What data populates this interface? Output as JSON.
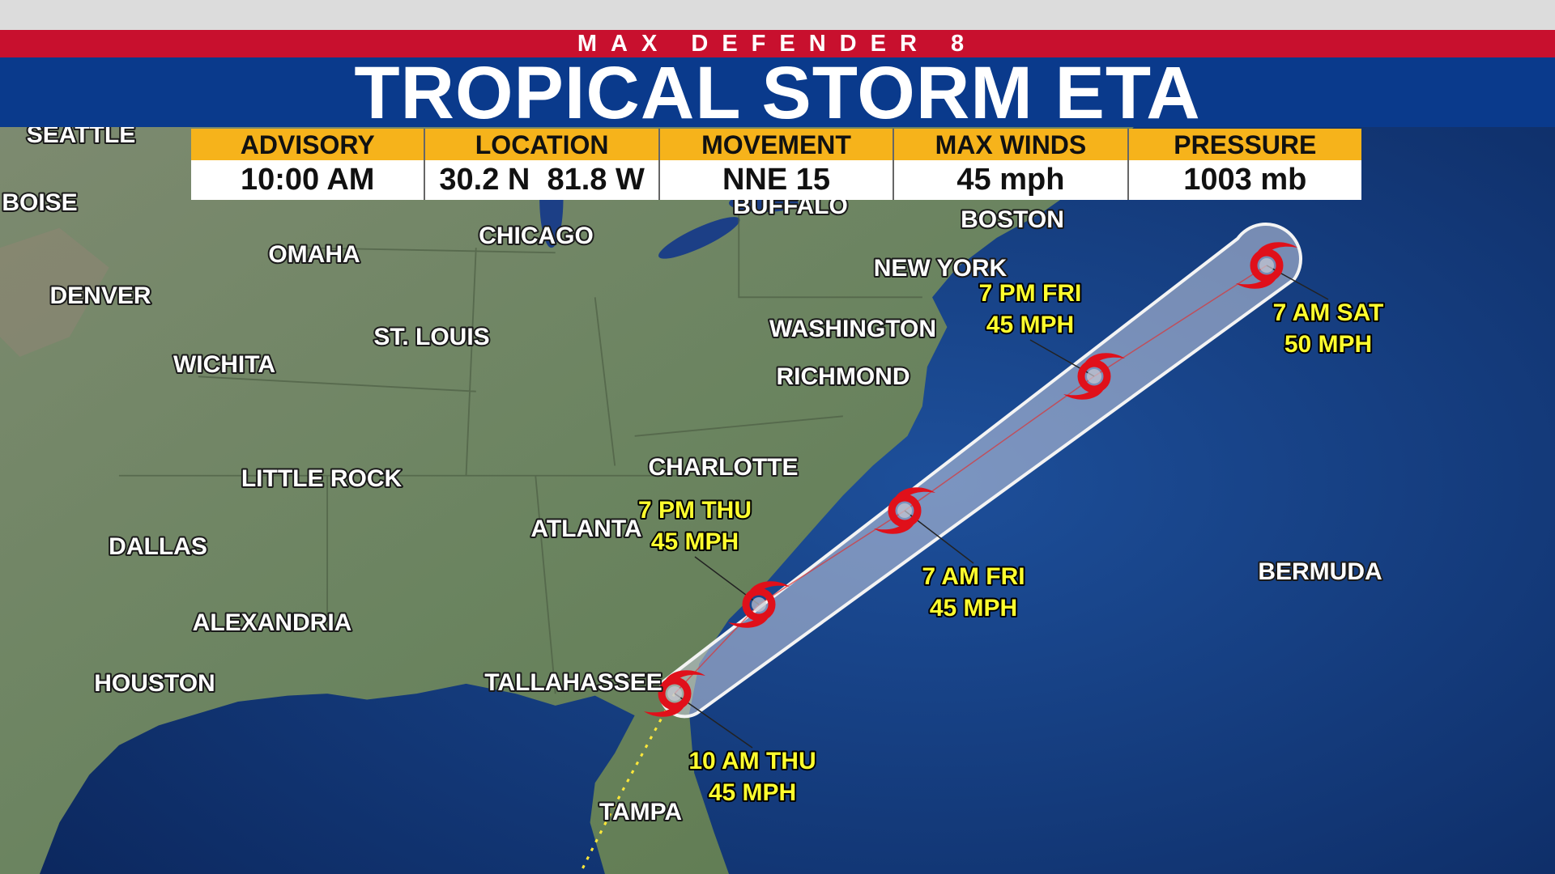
{
  "header": {
    "network": "MAX DEFENDER 8",
    "title": "TROPICAL STORM ETA"
  },
  "info_table": {
    "headers": [
      "ADVISORY",
      "LOCATION",
      "MOVEMENT",
      "MAX WINDS",
      "PRESSURE"
    ],
    "values": [
      "10:00 AM",
      "30.2 N  81.8 W",
      "NNE 15",
      "45 mph",
      "1003 mb"
    ]
  },
  "cities": [
    "SEATTLE",
    "BOISE",
    "OMAHA",
    "CHICAGO",
    "BUFFALO",
    "BOSTON",
    "NEW YORK",
    "DENVER",
    "ST. LOUIS",
    "WASHINGTON",
    "WICHITA",
    "RICHMOND",
    "CHARLOTTE",
    "LITTLE ROCK",
    "ATLANTA",
    "DALLAS",
    "BERMUDA",
    "ALEXANDRIA",
    "HOUSTON",
    "TALLAHASSEE",
    "TAMPA"
  ],
  "forecast_points": [
    {
      "time": "10 AM THU",
      "wind": "45 MPH"
    },
    {
      "time": "7 PM THU",
      "wind": "45 MPH"
    },
    {
      "time": "7 AM FRI",
      "wind": "45 MPH"
    },
    {
      "time": "7 PM FRI",
      "wind": "45 MPH"
    },
    {
      "time": "7 AM SAT",
      "wind": "50 MPH"
    }
  ]
}
